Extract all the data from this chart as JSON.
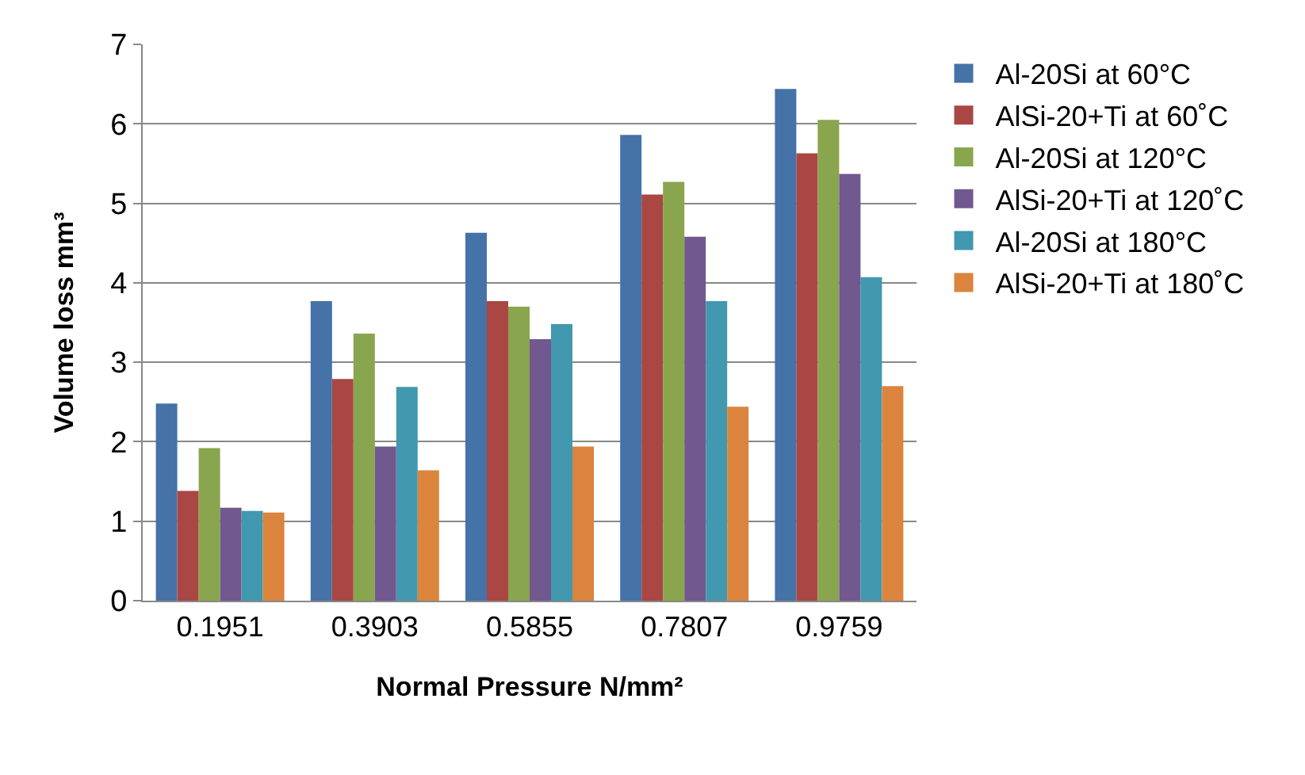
{
  "chart_data": {
    "type": "bar",
    "xlabel": "Normal Pressure N/mm²",
    "ylabel": "Volume loss mm³",
    "categories": [
      "0.1951",
      "0.3903",
      "0.5855",
      "0.7807",
      "0.9759"
    ],
    "series": [
      {
        "name": "Al-20Si at 60°C",
        "color": "#4572a7",
        "values": [
          2.48,
          3.77,
          4.63,
          5.86,
          6.44
        ]
      },
      {
        "name": "AlSi-20+Ti at 60˚C",
        "color": "#aa4643",
        "values": [
          1.38,
          2.79,
          3.77,
          5.11,
          5.63
        ]
      },
      {
        "name": "Al-20Si at 120°C",
        "color": "#89a54e",
        "values": [
          1.92,
          3.36,
          3.7,
          5.27,
          6.05
        ]
      },
      {
        "name": "AlSi-20+Ti at 120˚C",
        "color": "#71588f",
        "values": [
          1.17,
          1.94,
          3.29,
          4.58,
          5.37
        ]
      },
      {
        "name": "Al-20Si at 180°C",
        "color": "#4198af",
        "values": [
          1.13,
          2.69,
          3.48,
          3.77,
          4.07
        ]
      },
      {
        "name": "AlSi-20+Ti at 180˚C",
        "color": "#db843d",
        "values": [
          1.11,
          1.64,
          1.94,
          2.44,
          2.7
        ]
      }
    ],
    "ylim": [
      0,
      7
    ],
    "yticks": [
      0,
      1,
      2,
      3,
      4,
      5,
      6,
      7
    ],
    "grid": "y",
    "legend": "right"
  }
}
